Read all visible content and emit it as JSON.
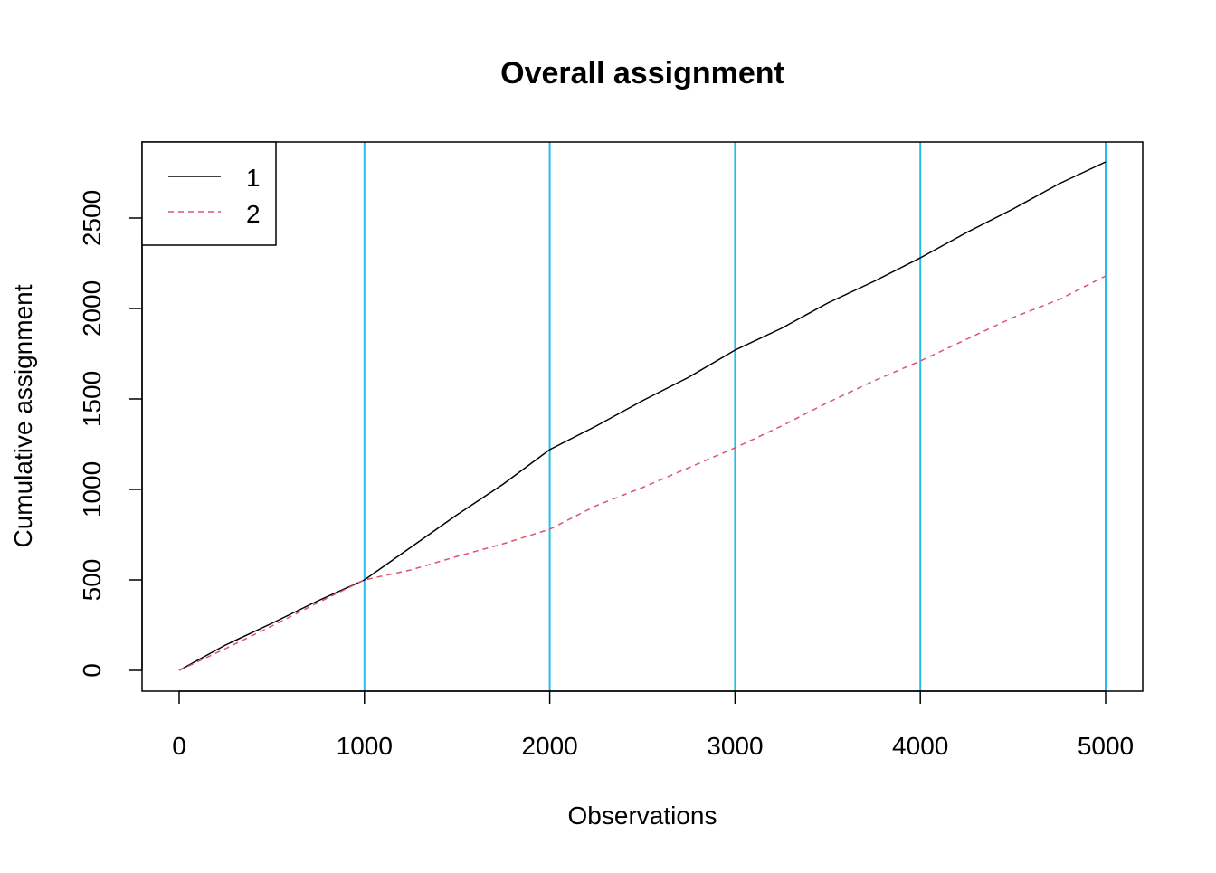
{
  "chart_data": {
    "type": "line",
    "title": "Overall assignment",
    "xlabel": "Observations",
    "ylabel": "Cumulative assignment",
    "xlim": [
      -200,
      5200
    ],
    "ylim": [
      -110,
      2920
    ],
    "xticks": [
      0,
      1000,
      2000,
      3000,
      4000,
      5000
    ],
    "yticks": [
      0,
      500,
      1000,
      1500,
      2000,
      2500
    ],
    "xtick_labels": [
      "0",
      "1000",
      "2000",
      "3000",
      "4000",
      "5000"
    ],
    "ytick_labels": [
      "0",
      "500",
      "1000",
      "1500",
      "2000",
      "2500"
    ],
    "vlines": [
      1000,
      2000,
      3000,
      4000,
      5000
    ],
    "vline_color": "#22BFEA",
    "grid": false,
    "legend": {
      "position": "top-left",
      "entries": [
        "1",
        "2"
      ]
    },
    "series": [
      {
        "name": "1",
        "color": "#000000",
        "dash": "solid",
        "x": [
          0,
          250,
          500,
          750,
          1000,
          1250,
          1500,
          1750,
          2000,
          2250,
          2500,
          2750,
          3000,
          3250,
          3500,
          3750,
          4000,
          4250,
          4500,
          4750,
          5000
        ],
        "y": [
          0,
          140,
          260,
          385,
          500,
          680,
          860,
          1030,
          1220,
          1350,
          1490,
          1620,
          1770,
          1890,
          2030,
          2150,
          2280,
          2420,
          2550,
          2690,
          2810
        ]
      },
      {
        "name": "2",
        "color": "#DF536B",
        "dash": "dashed",
        "x": [
          0,
          250,
          500,
          750,
          1000,
          1250,
          1500,
          1750,
          2000,
          2250,
          2500,
          2750,
          3000,
          3250,
          3500,
          3750,
          4000,
          4250,
          4500,
          4750,
          5000
        ],
        "y": [
          0,
          120,
          245,
          375,
          500,
          555,
          630,
          700,
          780,
          910,
          1010,
          1120,
          1230,
          1350,
          1480,
          1600,
          1710,
          1830,
          1950,
          2050,
          2180
        ]
      }
    ]
  }
}
